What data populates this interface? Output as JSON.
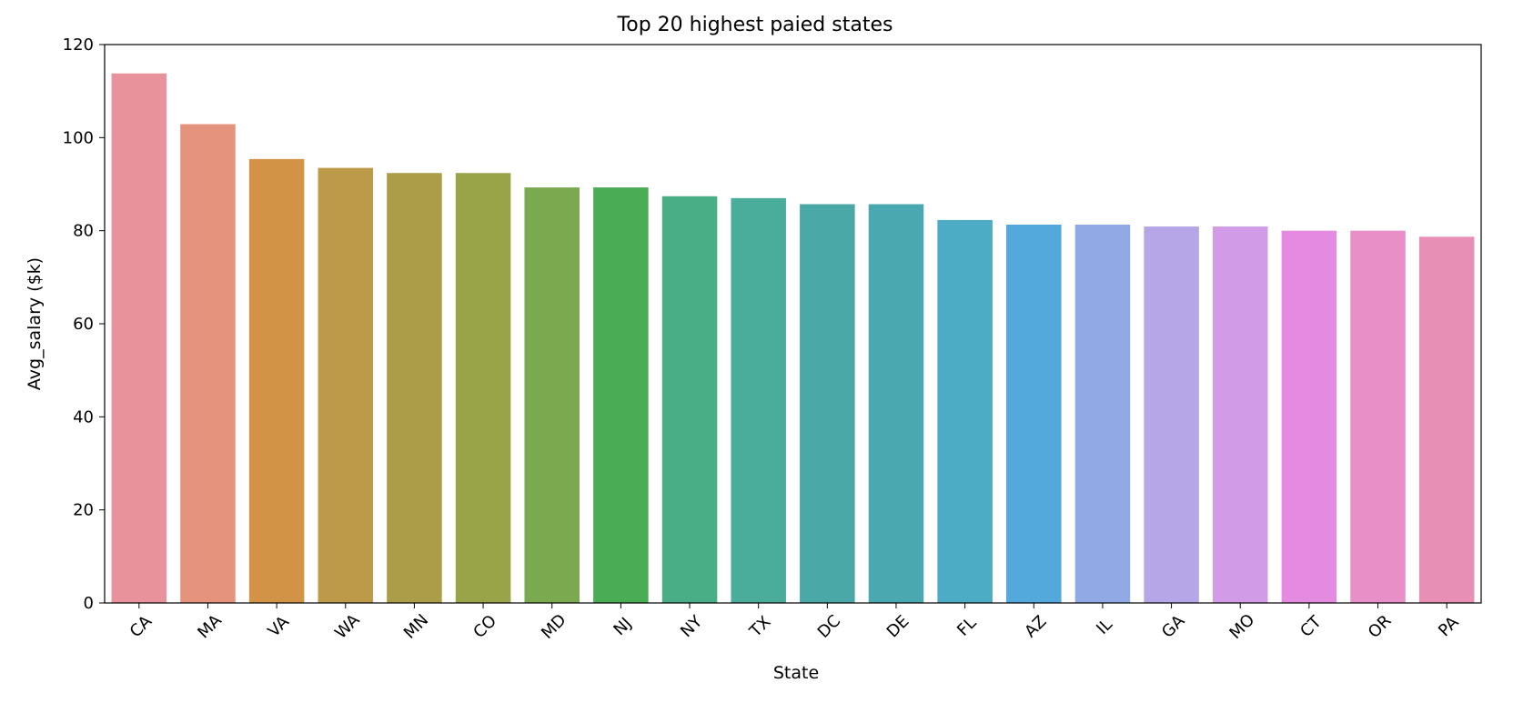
{
  "chart_data": {
    "type": "bar",
    "title": "Top 20 highest paied states",
    "xlabel": "State",
    "ylabel": "Avg_salary ($k)",
    "ylim": [
      0,
      120
    ],
    "yticks": [
      "0",
      "20",
      "40",
      "60",
      "80",
      "100",
      "120"
    ],
    "grid": false,
    "categories": [
      "CA",
      "MA",
      "VA",
      "WA",
      "MN",
      "CO",
      "MD",
      "NJ",
      "NY",
      "TX",
      "DC",
      "DE",
      "FL",
      "AZ",
      "IL",
      "GA",
      "MO",
      "CT",
      "OR",
      "PA"
    ],
    "values": [
      113.8,
      102.9,
      95.4,
      93.5,
      92.4,
      92.4,
      89.3,
      89.3,
      87.4,
      87.0,
      85.7,
      85.7,
      82.3,
      81.3,
      81.3,
      80.9,
      80.9,
      80.0,
      80.0,
      78.7
    ],
    "colors": [
      "#e8929c",
      "#e6937e",
      "#d39347",
      "#bd9a49",
      "#ac9e48",
      "#99a449",
      "#7ba94f",
      "#4bac56",
      "#49ad85",
      "#4aad9c",
      "#4aa9a7",
      "#4aa8b1",
      "#4cabc5",
      "#53a8dc",
      "#91a9e5",
      "#b6a5e7",
      "#d29be7",
      "#e48be1",
      "#e88fc8",
      "#e88fb5"
    ]
  }
}
